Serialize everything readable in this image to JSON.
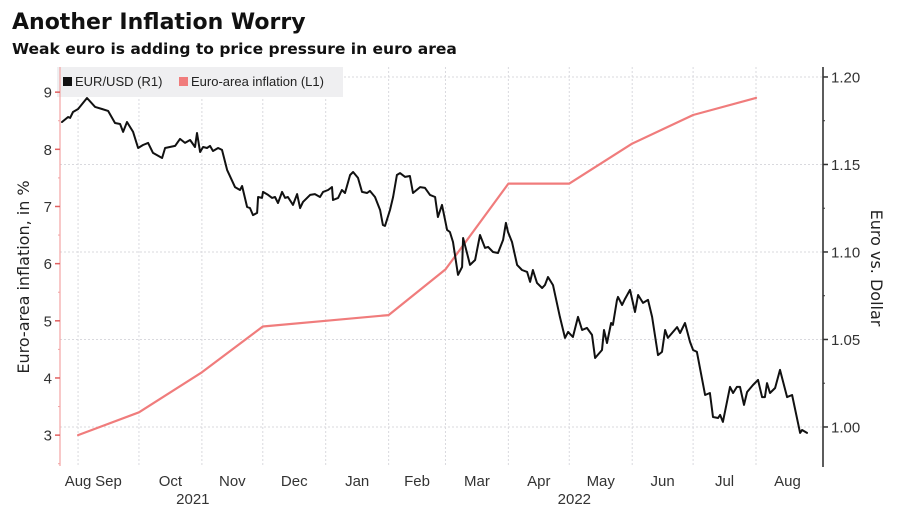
{
  "chart_data": {
    "type": "line",
    "title": "Another Inflation Worry",
    "subtitle": "Weak euro is adding to price pressure in euro area",
    "grid": true,
    "legend_position": "top-left",
    "legend": [
      {
        "name": "EUR/USD (R1)",
        "color": "#111111"
      },
      {
        "name": "Euro-area inflation (L1)",
        "color": "#f07c7c"
      }
    ],
    "colors": {
      "left_axis": "#f2a3a3",
      "right_axis": "#333333"
    },
    "y_left": {
      "label": "Euro-area inflation, in %",
      "ticks": [
        3,
        4,
        5,
        6,
        7,
        8,
        9
      ],
      "minor_step": 0.5,
      "range": [
        2.46,
        9.44
      ]
    },
    "y_right": {
      "label": "Euro vs. Dollar",
      "ticks": [
        "1.00",
        "1.05",
        "1.10",
        "1.15",
        "1.20"
      ],
      "minor_step": 0.025,
      "range": [
        0.9777,
        1.2057
      ]
    },
    "x_axis": {
      "x_origin": "2021-08-01",
      "x_unit": "days since 2021-08-01",
      "range": [
        22.1,
        398
      ],
      "months": [
        {
          "label": "Aug",
          "ym": "2021-08"
        },
        {
          "label": "Sep",
          "ym": "2021-09"
        },
        {
          "label": "Oct",
          "ym": "2021-10"
        },
        {
          "label": "Nov",
          "ym": "2021-11"
        },
        {
          "label": "Dec",
          "ym": "2021-12"
        },
        {
          "label": "Jan",
          "ym": "2022-01"
        },
        {
          "label": "Feb",
          "ym": "2022-02"
        },
        {
          "label": "Mar",
          "ym": "2022-03"
        },
        {
          "label": "Apr",
          "ym": "2022-04"
        },
        {
          "label": "May",
          "ym": "2022-05"
        },
        {
          "label": "Jun",
          "ym": "2022-06"
        },
        {
          "label": "Jul",
          "ym": "2022-07"
        },
        {
          "label": "Aug",
          "ym": "2022-08"
        }
      ],
      "years": [
        "2021",
        "2022"
      ]
    },
    "series": [
      {
        "name": "Euro-area inflation",
        "axis": "left",
        "unit": "%",
        "months": [
          "2021-08",
          "2021-09",
          "2021-10",
          "2021-11",
          "2021-12",
          "2022-01",
          "2022-02",
          "2022-03",
          "2022-04",
          "2022-05",
          "2022-06",
          "2022-07"
        ],
        "values": [
          3.0,
          3.4,
          4.1,
          4.9,
          5.0,
          5.1,
          5.9,
          7.4,
          7.4,
          8.1,
          8.6,
          8.9
        ]
      },
      {
        "name": "EUR/USD",
        "axis": "right",
        "points": [
          [
            23.1,
            1.1743
          ],
          [
            26.1,
            1.1771
          ],
          [
            27.1,
            1.1766
          ],
          [
            28.5,
            1.18
          ],
          [
            31.0,
            1.1817
          ],
          [
            35.4,
            1.188
          ],
          [
            39.4,
            1.1829
          ],
          [
            42.8,
            1.1817
          ],
          [
            45.8,
            1.1806
          ],
          [
            49.2,
            1.1737
          ],
          [
            51.7,
            1.1731
          ],
          [
            53.2,
            1.1686
          ],
          [
            55.1,
            1.1743
          ],
          [
            58.1,
            1.1686
          ],
          [
            60.6,
            1.1594
          ],
          [
            63.0,
            1.1611
          ],
          [
            65.5,
            1.1623
          ],
          [
            67.9,
            1.1566
          ],
          [
            72.4,
            1.1537
          ],
          [
            73.9,
            1.1594
          ],
          [
            78.8,
            1.1606
          ],
          [
            81.2,
            1.1646
          ],
          [
            83.7,
            1.1623
          ],
          [
            86.2,
            1.164
          ],
          [
            88.6,
            1.16
          ],
          [
            89.6,
            1.168
          ],
          [
            91.1,
            1.1571
          ],
          [
            92.6,
            1.16
          ],
          [
            94.5,
            1.1594
          ],
          [
            96.0,
            1.1606
          ],
          [
            97.5,
            1.1577
          ],
          [
            100.0,
            1.1594
          ],
          [
            101.9,
            1.1583
          ],
          [
            104.4,
            1.1469
          ],
          [
            108.3,
            1.1371
          ],
          [
            110.8,
            1.1354
          ],
          [
            111.8,
            1.1377
          ],
          [
            114.3,
            1.1257
          ],
          [
            115.7,
            1.1251
          ],
          [
            117.2,
            1.1211
          ],
          [
            119.2,
            1.1223
          ],
          [
            119.7,
            1.1314
          ],
          [
            121.6,
            1.1309
          ],
          [
            122.1,
            1.1343
          ],
          [
            124.6,
            1.1326
          ],
          [
            126.6,
            1.1309
          ],
          [
            128.0,
            1.1314
          ],
          [
            129.5,
            1.128
          ],
          [
            131.5,
            1.1343
          ],
          [
            133.0,
            1.1309
          ],
          [
            134.4,
            1.1314
          ],
          [
            136.9,
            1.1269
          ],
          [
            138.9,
            1.1331
          ],
          [
            140.4,
            1.1251
          ],
          [
            141.8,
            1.1286
          ],
          [
            145.3,
            1.1326
          ],
          [
            147.7,
            1.1331
          ],
          [
            150.2,
            1.1314
          ],
          [
            151.7,
            1.1343
          ],
          [
            154.2,
            1.1354
          ],
          [
            156.1,
            1.1371
          ],
          [
            156.6,
            1.1297
          ],
          [
            159.1,
            1.1309
          ],
          [
            161.0,
            1.1354
          ],
          [
            162.5,
            1.1337
          ],
          [
            165.0,
            1.144
          ],
          [
            166.5,
            1.1457
          ],
          [
            168.9,
            1.1423
          ],
          [
            170.9,
            1.1343
          ],
          [
            173.4,
            1.1337
          ],
          [
            174.8,
            1.1349
          ],
          [
            177.3,
            1.1314
          ],
          [
            179.8,
            1.124
          ],
          [
            181.2,
            1.1154
          ],
          [
            182.2,
            1.1149
          ],
          [
            184.7,
            1.124
          ],
          [
            186.2,
            1.1314
          ],
          [
            188.1,
            1.144
          ],
          [
            189.6,
            1.1451
          ],
          [
            192.1,
            1.1429
          ],
          [
            194.5,
            1.1434
          ],
          [
            196.0,
            1.1337
          ],
          [
            199.5,
            1.1371
          ],
          [
            201.9,
            1.1366
          ],
          [
            204.4,
            1.1326
          ],
          [
            206.9,
            1.1314
          ],
          [
            208.3,
            1.12
          ],
          [
            210.3,
            1.1269
          ],
          [
            212.8,
            1.1126
          ],
          [
            214.2,
            1.1114
          ],
          [
            215.7,
            1.1057
          ],
          [
            218.2,
            1.0869
          ],
          [
            220.2,
            1.0914
          ],
          [
            220.7,
            1.108
          ],
          [
            222.6,
            1.0994
          ],
          [
            224.1,
            1.0926
          ],
          [
            226.6,
            1.0954
          ],
          [
            229.0,
            1.1097
          ],
          [
            231.5,
            1.1023
          ],
          [
            233.0,
            1.1029
          ],
          [
            235.4,
            1.1
          ],
          [
            237.9,
            1.0994
          ],
          [
            240.4,
            1.1069
          ],
          [
            241.8,
            1.1166
          ],
          [
            242.8,
            1.1114
          ],
          [
            244.8,
            1.1057
          ],
          [
            247.3,
            1.0926
          ],
          [
            249.7,
            1.0897
          ],
          [
            252.2,
            1.0886
          ],
          [
            253.7,
            1.0829
          ],
          [
            255.1,
            1.0897
          ],
          [
            257.1,
            1.0823
          ],
          [
            259.6,
            1.0794
          ],
          [
            261.0,
            1.0811
          ],
          [
            262.5,
            1.0857
          ],
          [
            265.0,
            1.0811
          ],
          [
            268.4,
            1.0629
          ],
          [
            270.9,
            1.0509
          ],
          [
            272.4,
            1.0543
          ],
          [
            274.8,
            1.0514
          ],
          [
            277.3,
            1.0629
          ],
          [
            279.3,
            1.0554
          ],
          [
            281.7,
            1.0566
          ],
          [
            284.2,
            1.0526
          ],
          [
            285.7,
            1.0394
          ],
          [
            289.1,
            1.044
          ],
          [
            290.1,
            1.0554
          ],
          [
            291.6,
            1.048
          ],
          [
            293.6,
            1.0594
          ],
          [
            294.5,
            1.0583
          ],
          [
            296.5,
            1.0726
          ],
          [
            297.0,
            1.0743
          ],
          [
            299.0,
            1.0697
          ],
          [
            300.4,
            1.0731
          ],
          [
            302.9,
            1.0783
          ],
          [
            305.4,
            1.0657
          ],
          [
            306.9,
            1.0754
          ],
          [
            309.3,
            1.0709
          ],
          [
            311.8,
            1.0726
          ],
          [
            313.8,
            1.0629
          ],
          [
            316.7,
            1.0411
          ],
          [
            318.7,
            1.0429
          ],
          [
            320.2,
            1.0554
          ],
          [
            321.6,
            1.0509
          ],
          [
            326.1,
            1.0571
          ],
          [
            327.6,
            1.0537
          ],
          [
            330.0,
            1.0594
          ],
          [
            332.5,
            1.0486
          ],
          [
            334.0,
            1.044
          ],
          [
            335.9,
            1.0429
          ],
          [
            339.9,
            1.0183
          ],
          [
            342.3,
            1.0194
          ],
          [
            343.8,
            1.0057
          ],
          [
            346.3,
            1.0051
          ],
          [
            347.3,
            1.0069
          ],
          [
            348.7,
            1.0029
          ],
          [
            352.2,
            1.0229
          ],
          [
            353.7,
            1.0194
          ],
          [
            355.6,
            1.0229
          ],
          [
            357.1,
            1.0229
          ],
          [
            359.1,
            1.0126
          ],
          [
            360.6,
            1.02
          ],
          [
            363.5,
            1.024
          ],
          [
            366.0,
            1.0269
          ],
          [
            368.0,
            1.0171
          ],
          [
            369.4,
            1.0171
          ],
          [
            370.4,
            1.0251
          ],
          [
            371.9,
            1.0194
          ],
          [
            374.4,
            1.0223
          ],
          [
            376.8,
            1.0326
          ],
          [
            380.3,
            1.0171
          ],
          [
            382.8,
            1.0183
          ],
          [
            386.7,
            0.9966
          ],
          [
            387.7,
            0.9983
          ],
          [
            390.1,
            0.9966
          ]
        ]
      }
    ]
  }
}
